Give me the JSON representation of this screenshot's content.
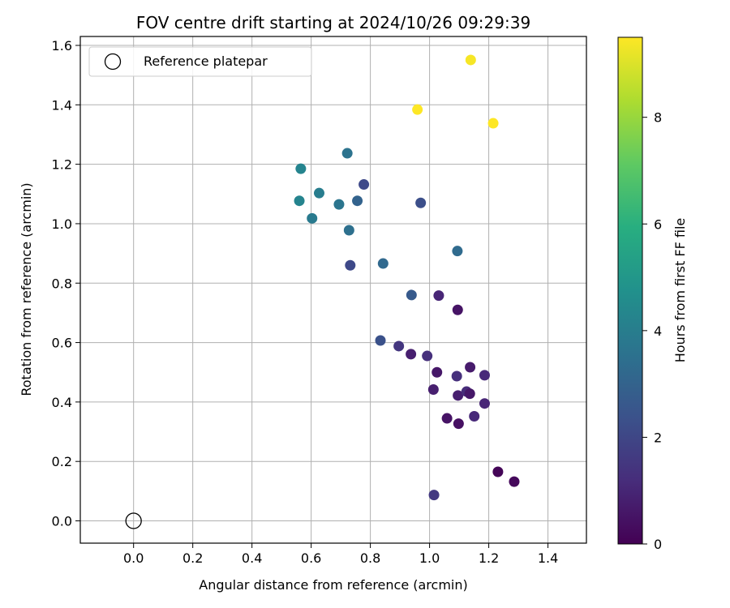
{
  "chart_data": {
    "type": "scatter",
    "title": "FOV centre drift starting at 2024/10/26 09:29:39",
    "xlabel": "Angular distance from reference (arcmin)",
    "ylabel": "Rotation from reference (arcmin)",
    "xlim": [
      -0.18,
      1.53
    ],
    "ylim": [
      -0.075,
      1.63
    ],
    "xticks": [
      "0.0",
      "0.2",
      "0.4",
      "0.6",
      "0.8",
      "1.0",
      "1.2",
      "1.4"
    ],
    "yticks": [
      "0.0",
      "0.2",
      "0.4",
      "0.6",
      "0.8",
      "1.0",
      "1.2",
      "1.4",
      "1.6"
    ],
    "grid": true,
    "legend": {
      "position": "top-left",
      "entries": [
        {
          "label": "Reference platepar",
          "marker": "open-circle",
          "x": 0.0,
          "y": 0.0
        }
      ]
    },
    "colorbar": {
      "label": "Hours from first FF file",
      "colormap": "viridis",
      "range": [
        0,
        9.5
      ],
      "ticks": [
        "0",
        "2",
        "4",
        "6",
        "8"
      ]
    },
    "points": [
      {
        "x": 0.565,
        "y": 1.185,
        "c": 4.3
      },
      {
        "x": 0.56,
        "y": 1.077,
        "c": 4.3
      },
      {
        "x": 0.603,
        "y": 1.018,
        "c": 3.9
      },
      {
        "x": 0.627,
        "y": 1.103,
        "c": 4.0
      },
      {
        "x": 0.694,
        "y": 1.065,
        "c": 3.7
      },
      {
        "x": 0.722,
        "y": 1.237,
        "c": 3.6
      },
      {
        "x": 0.728,
        "y": 0.978,
        "c": 3.5
      },
      {
        "x": 0.756,
        "y": 1.077,
        "c": 3.0
      },
      {
        "x": 0.778,
        "y": 1.132,
        "c": 2.1
      },
      {
        "x": 0.732,
        "y": 0.86,
        "c": 2.1
      },
      {
        "x": 0.843,
        "y": 0.866,
        "c": 3.2
      },
      {
        "x": 0.97,
        "y": 1.07,
        "c": 2.3
      },
      {
        "x": 1.094,
        "y": 0.908,
        "c": 3.3
      },
      {
        "x": 0.939,
        "y": 0.76,
        "c": 2.7
      },
      {
        "x": 1.031,
        "y": 0.758,
        "c": 1.0
      },
      {
        "x": 1.095,
        "y": 0.71,
        "c": 0.5
      },
      {
        "x": 0.834,
        "y": 0.607,
        "c": 2.4
      },
      {
        "x": 0.896,
        "y": 0.588,
        "c": 1.5
      },
      {
        "x": 0.937,
        "y": 0.561,
        "c": 0.8
      },
      {
        "x": 0.992,
        "y": 0.555,
        "c": 1.3
      },
      {
        "x": 1.025,
        "y": 0.5,
        "c": 0.6
      },
      {
        "x": 1.092,
        "y": 0.487,
        "c": 1.3
      },
      {
        "x": 1.137,
        "y": 0.517,
        "c": 0.7
      },
      {
        "x": 1.186,
        "y": 0.49,
        "c": 1.1
      },
      {
        "x": 1.013,
        "y": 0.442,
        "c": 0.8
      },
      {
        "x": 1.096,
        "y": 0.422,
        "c": 0.8
      },
      {
        "x": 1.125,
        "y": 0.435,
        "c": 1.2
      },
      {
        "x": 1.136,
        "y": 0.428,
        "c": 0.6
      },
      {
        "x": 1.186,
        "y": 0.395,
        "c": 1.0
      },
      {
        "x": 1.059,
        "y": 0.345,
        "c": 0.5
      },
      {
        "x": 1.098,
        "y": 0.327,
        "c": 0.4
      },
      {
        "x": 1.151,
        "y": 0.352,
        "c": 1.1
      },
      {
        "x": 1.231,
        "y": 0.165,
        "c": 0.1
      },
      {
        "x": 1.286,
        "y": 0.132,
        "c": 0.2
      },
      {
        "x": 1.015,
        "y": 0.087,
        "c": 1.6
      },
      {
        "x": 0.959,
        "y": 1.384,
        "c": 9.5
      },
      {
        "x": 1.139,
        "y": 1.551,
        "c": 9.4
      },
      {
        "x": 1.215,
        "y": 1.338,
        "c": 9.5
      }
    ]
  }
}
